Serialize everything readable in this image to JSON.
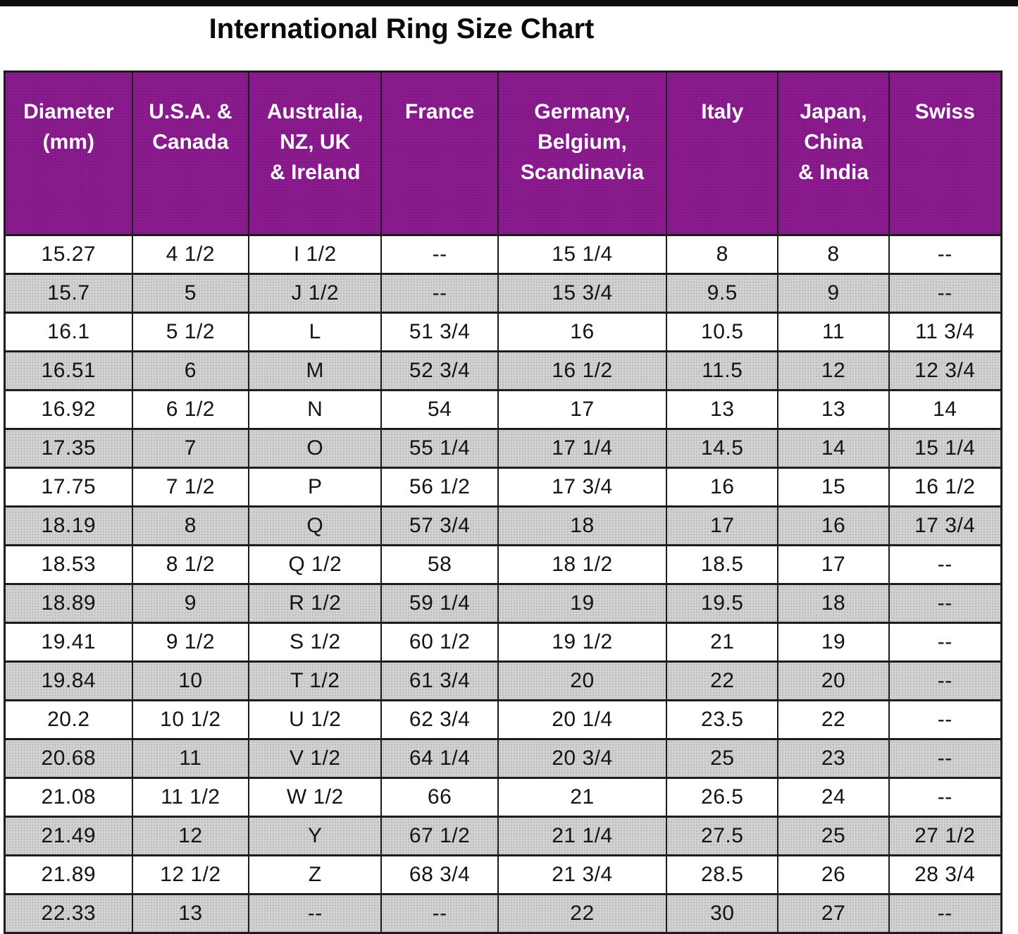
{
  "title": "International Ring Size Chart",
  "colors": {
    "header_bg": "#8c1b90",
    "header_text": "#ffffff",
    "row_bg": "#ffffff",
    "row_alt_bg": "#d2d2d2",
    "border": "#1c1c1c",
    "cell_text": "#141414",
    "top_bar": "#0d0d0d"
  },
  "chart_data": {
    "type": "table",
    "title": "International Ring Size Chart",
    "columns": [
      "Diameter\n(mm)",
      "U.S.A. &\nCanada",
      "Australia,\nNZ, UK\n& Ireland",
      "France",
      "Germany,\nBelgium,\nScandinavia",
      "Italy",
      "Japan,\nChina\n& India",
      "Swiss"
    ],
    "column_widths_pct": [
      12.8,
      11.7,
      13.3,
      11.7,
      16.9,
      11.2,
      11.1,
      11.3
    ],
    "rows": [
      [
        "15.27",
        "4 1/2",
        "I 1/2",
        "--",
        "15 1/4",
        "8",
        "8",
        "--"
      ],
      [
        "15.7",
        "5",
        "J 1/2",
        "--",
        "15 3/4",
        "9.5",
        "9",
        "--"
      ],
      [
        "16.1",
        "5 1/2",
        "L",
        "51 3/4",
        "16",
        "10.5",
        "11",
        "11 3/4"
      ],
      [
        "16.51",
        "6",
        "M",
        "52 3/4",
        "16 1/2",
        "11.5",
        "12",
        "12 3/4"
      ],
      [
        "16.92",
        "6 1/2",
        "N",
        "54",
        "17",
        "13",
        "13",
        "14"
      ],
      [
        "17.35",
        "7",
        "O",
        "55 1/4",
        "17 1/4",
        "14.5",
        "14",
        "15 1/4"
      ],
      [
        "17.75",
        "7 1/2",
        "P",
        "56 1/2",
        "17 3/4",
        "16",
        "15",
        "16 1/2"
      ],
      [
        "18.19",
        "8",
        "Q",
        "57 3/4",
        "18",
        "17",
        "16",
        "17 3/4"
      ],
      [
        "18.53",
        "8 1/2",
        "Q 1/2",
        "58",
        "18 1/2",
        "18.5",
        "17",
        "--"
      ],
      [
        "18.89",
        "9",
        "R 1/2",
        "59 1/4",
        "19",
        "19.5",
        "18",
        "--"
      ],
      [
        "19.41",
        "9 1/2",
        "S 1/2",
        "60 1/2",
        "19 1/2",
        "21",
        "19",
        "--"
      ],
      [
        "19.84",
        "10",
        "T 1/2",
        "61 3/4",
        "20",
        "22",
        "20",
        "--"
      ],
      [
        "20.2",
        "10 1/2",
        "U 1/2",
        "62 3/4",
        "20 1/4",
        "23.5",
        "22",
        "--"
      ],
      [
        "20.68",
        "11",
        "V 1/2",
        "64 1/4",
        "20 3/4",
        "25",
        "23",
        "--"
      ],
      [
        "21.08",
        "11 1/2",
        "W 1/2",
        "66",
        "21",
        "26.5",
        "24",
        "--"
      ],
      [
        "21.49",
        "12",
        "Y",
        "67 1/2",
        "21 1/4",
        "27.5",
        "25",
        "27 1/2"
      ],
      [
        "21.89",
        "12 1/2",
        "Z",
        "68 3/4",
        "21 3/4",
        "28.5",
        "26",
        "28 3/4"
      ],
      [
        "22.33",
        "13",
        "--",
        "--",
        "22",
        "30",
        "27",
        "--"
      ]
    ]
  }
}
